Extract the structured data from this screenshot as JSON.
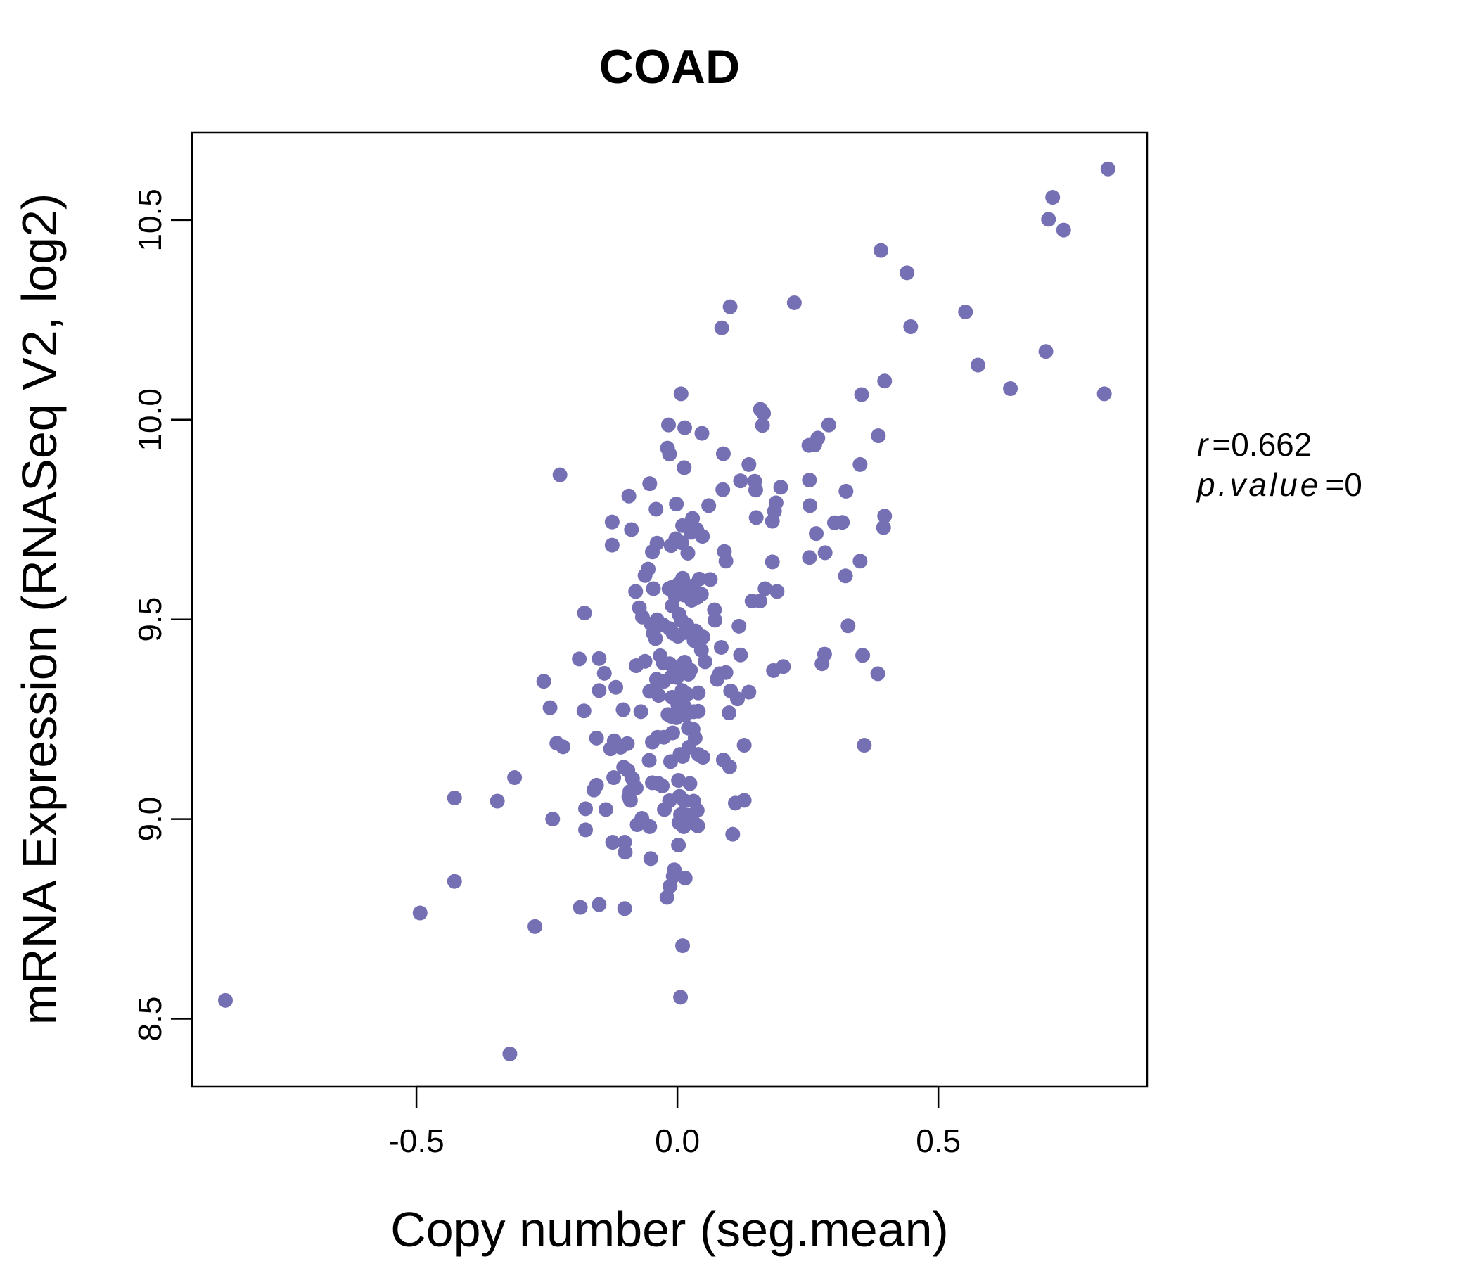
{
  "chart_data": {
    "type": "scatter",
    "title": "COAD",
    "xlabel": "Copy number (seg.mean)",
    "ylabel": "mRNA Expression (RNASeq V2, log2)",
    "xlim": [
      -0.93,
      0.9
    ],
    "ylim": [
      8.33,
      10.72
    ],
    "x_ticks": [
      {
        "value": -0.5,
        "label": "-0.5"
      },
      {
        "value": 0.0,
        "label": "0.0"
      },
      {
        "value": 0.5,
        "label": "0.5"
      }
    ],
    "y_ticks": [
      {
        "value": 8.5,
        "label": "8.5"
      },
      {
        "value": 9.0,
        "label": "9.0"
      },
      {
        "value": 9.5,
        "label": "9.5"
      },
      {
        "value": 10.0,
        "label": "10.0"
      },
      {
        "value": 10.5,
        "label": "10.5"
      }
    ],
    "grid": false,
    "legend": "none",
    "point_color": "#7570B3",
    "title_color": "#7570B3",
    "annotations": {
      "r_symbol": "r",
      "r_value": "0.662",
      "p_symbol": "p.value",
      "p_value": "0"
    },
    "series": [
      {
        "points": [
          [
            -0.866,
            8.546
          ],
          [
            -0.321,
            8.412
          ],
          [
            -0.493,
            8.765
          ],
          [
            -0.427,
            8.844
          ],
          [
            -0.273,
            8.731
          ],
          [
            -0.427,
            9.053
          ],
          [
            -0.345,
            9.045
          ],
          [
            -0.312,
            9.104
          ],
          [
            -0.239,
            9.0
          ],
          [
            -0.225,
            9.862
          ],
          [
            -0.256,
            9.345
          ],
          [
            -0.244,
            9.279
          ],
          [
            -0.231,
            9.19
          ],
          [
            -0.219,
            9.181
          ],
          [
            -0.188,
            9.401
          ],
          [
            -0.178,
            9.516
          ],
          [
            -0.179,
            9.271
          ],
          [
            -0.176,
            9.026
          ],
          [
            -0.176,
            8.973
          ],
          [
            -0.186,
            8.779
          ],
          [
            -0.15,
            8.786
          ],
          [
            -0.101,
            8.776
          ],
          [
            -0.15,
            9.402
          ],
          [
            -0.15,
            9.322
          ],
          [
            -0.155,
            9.203
          ],
          [
            -0.155,
            9.085
          ],
          [
            -0.16,
            9.073
          ],
          [
            -0.14,
            9.365
          ],
          [
            -0.125,
            9.744
          ],
          [
            -0.125,
            9.686
          ],
          [
            -0.118,
            9.33
          ],
          [
            -0.121,
            9.196
          ],
          [
            -0.128,
            9.176
          ],
          [
            -0.122,
            9.104
          ],
          [
            -0.124,
            8.942
          ],
          [
            -0.137,
            9.024
          ],
          [
            -0.093,
            9.809
          ],
          [
            -0.088,
            9.725
          ],
          [
            -0.08,
            9.57
          ],
          [
            -0.073,
            9.529
          ],
          [
            -0.062,
            9.61
          ],
          [
            -0.104,
            9.274
          ],
          [
            -0.109,
            9.18
          ],
          [
            -0.096,
            9.189
          ],
          [
            -0.103,
            9.13
          ],
          [
            -0.095,
            9.122
          ],
          [
            -0.086,
            9.101
          ],
          [
            -0.091,
            9.069
          ],
          [
            -0.079,
            9.078
          ],
          [
            -0.093,
            9.056
          ],
          [
            -0.09,
            9.047
          ],
          [
            -0.101,
            8.942
          ],
          [
            -0.1,
            8.917
          ],
          [
            -0.079,
            9.384
          ],
          [
            -0.077,
            8.986
          ],
          [
            -0.067,
            9.506
          ],
          [
            -0.062,
            9.395
          ],
          [
            -0.07,
            9.269
          ],
          [
            -0.068,
            9.002
          ],
          [
            -0.053,
            9.84
          ],
          [
            -0.056,
            9.626
          ],
          [
            -0.048,
            9.669
          ],
          [
            -0.046,
            9.577
          ],
          [
            -0.05,
            9.488
          ],
          [
            -0.046,
            9.465
          ],
          [
            -0.042,
            9.452
          ],
          [
            -0.053,
            9.32
          ],
          [
            -0.044,
            9.325
          ],
          [
            -0.036,
            9.31
          ],
          [
            -0.048,
            9.193
          ],
          [
            -0.054,
            9.147
          ],
          [
            -0.048,
            9.091
          ],
          [
            -0.053,
            8.981
          ],
          [
            -0.051,
            8.901
          ],
          [
            -0.041,
            9.776
          ],
          [
            -0.039,
            9.691
          ],
          [
            -0.039,
            9.499
          ],
          [
            -0.028,
            9.487
          ],
          [
            -0.033,
            9.409
          ],
          [
            -0.027,
            9.391
          ],
          [
            -0.04,
            9.35
          ],
          [
            -0.026,
            9.345
          ],
          [
            -0.038,
            9.205
          ],
          [
            -0.026,
            9.205
          ],
          [
            -0.036,
            9.089
          ],
          [
            -0.029,
            9.083
          ],
          [
            -0.025,
            9.024
          ],
          [
            -0.017,
            9.987
          ],
          [
            -0.019,
            9.929
          ],
          [
            -0.015,
            9.914
          ],
          [
            -0.012,
            9.685
          ],
          [
            -0.016,
            9.577
          ],
          [
            -0.011,
            9.58
          ],
          [
            -0.01,
            9.534
          ],
          [
            -0.015,
            9.477
          ],
          [
            -0.008,
            9.465
          ],
          [
            -0.015,
            9.389
          ],
          [
            -0.011,
            9.357
          ],
          [
            -0.01,
            9.305
          ],
          [
            -0.011,
            9.257
          ],
          [
            -0.018,
            9.262
          ],
          [
            -0.009,
            9.216
          ],
          [
            -0.013,
            9.144
          ],
          [
            -0.015,
            9.046
          ],
          [
            -0.02,
            8.804
          ],
          [
            -0.014,
            8.832
          ],
          [
            -0.008,
            8.857
          ],
          [
            -0.006,
            8.873
          ],
          [
            -0.002,
            9.789
          ],
          [
            -0.003,
            9.702
          ],
          [
            0.002,
            9.588
          ],
          [
            -0.004,
            9.559
          ],
          [
            0.003,
            9.513
          ],
          [
            0.001,
            9.458
          ],
          [
            0.005,
            9.377
          ],
          [
            -0.001,
            9.355
          ],
          [
            0.004,
            9.302
          ],
          [
            0.001,
            9.286
          ],
          [
            -0.002,
            9.254
          ],
          [
            0.005,
            9.162
          ],
          [
            0.002,
            9.097
          ],
          [
            0.004,
            9.057
          ],
          [
            0.006,
            9.011
          ],
          [
            0.003,
            8.991
          ],
          [
            0.002,
            8.935
          ],
          [
            0.006,
            8.554
          ],
          [
            0.007,
            10.065
          ],
          [
            0.01,
            9.735
          ],
          [
            0.008,
            9.692
          ],
          [
            0.01,
            9.603
          ],
          [
            0.013,
            9.561
          ],
          [
            0.008,
            9.497
          ],
          [
            0.014,
            9.467
          ],
          [
            0.01,
            9.387
          ],
          [
            0.014,
            9.393
          ],
          [
            0.009,
            9.322
          ],
          [
            0.012,
            9.285
          ],
          [
            0.015,
            9.26
          ],
          [
            0.01,
            9.157
          ],
          [
            0.013,
            9.046
          ],
          [
            0.008,
            9.012
          ],
          [
            0.012,
            8.981
          ],
          [
            0.015,
            8.852
          ],
          [
            0.01,
            8.683
          ],
          [
            0.014,
            9.98
          ],
          [
            0.013,
            9.88
          ],
          [
            0.02,
            9.666
          ],
          [
            0.02,
            9.567
          ],
          [
            0.018,
            9.487
          ],
          [
            0.021,
            9.363
          ],
          [
            0.019,
            9.313
          ],
          [
            0.021,
            9.228
          ],
          [
            0.022,
            9.18
          ],
          [
            0.024,
            9.089
          ],
          [
            0.019,
            9.01
          ],
          [
            0.025,
            8.992
          ],
          [
            0.029,
            9.753
          ],
          [
            0.026,
            9.718
          ],
          [
            0.03,
            9.584
          ],
          [
            0.027,
            9.548
          ],
          [
            0.032,
            9.447
          ],
          [
            0.025,
            9.373
          ],
          [
            0.031,
            9.269
          ],
          [
            0.03,
            9.225
          ],
          [
            0.031,
            9.045
          ],
          [
            0.032,
            8.99
          ],
          [
            0.037,
            9.725
          ],
          [
            0.042,
            9.601
          ],
          [
            0.038,
            9.555
          ],
          [
            0.035,
            9.471
          ],
          [
            0.04,
            9.316
          ],
          [
            0.04,
            9.27
          ],
          [
            0.034,
            9.203
          ],
          [
            0.04,
            9.162
          ],
          [
            0.038,
            9.022
          ],
          [
            0.039,
            8.983
          ],
          [
            0.047,
            9.966
          ],
          [
            0.048,
            9.708
          ],
          [
            0.046,
            9.563
          ],
          [
            0.049,
            9.456
          ],
          [
            0.046,
            9.423
          ],
          [
            0.053,
            9.394
          ],
          [
            0.049,
            9.155
          ],
          [
            0.06,
            9.785
          ],
          [
            0.063,
            9.6
          ],
          [
            0.071,
            9.524
          ],
          [
            0.072,
            9.498
          ],
          [
            0.076,
            9.35
          ],
          [
            0.081,
            9.364
          ],
          [
            0.085,
            10.23
          ],
          [
            0.088,
            9.915
          ],
          [
            0.087,
            9.825
          ],
          [
            0.09,
            9.67
          ],
          [
            0.093,
            9.646
          ],
          [
            0.084,
            9.43
          ],
          [
            0.088,
            9.148
          ],
          [
            0.093,
            9.367
          ],
          [
            0.099,
            9.266
          ],
          [
            0.101,
            10.283
          ],
          [
            0.102,
            9.321
          ],
          [
            0.1,
            9.131
          ],
          [
            0.106,
            8.962
          ],
          [
            0.111,
            9.04
          ],
          [
            0.115,
            9.301
          ],
          [
            0.118,
            9.483
          ],
          [
            0.121,
            9.411
          ],
          [
            0.121,
            9.847
          ],
          [
            0.128,
            9.185
          ],
          [
            0.128,
            9.047
          ],
          [
            0.137,
            9.318
          ],
          [
            0.137,
            9.888
          ],
          [
            0.143,
            9.546
          ],
          [
            0.148,
            9.846
          ],
          [
            0.15,
            9.824
          ],
          [
            0.151,
            9.755
          ],
          [
            0.159,
            10.026
          ],
          [
            0.165,
            10.016
          ],
          [
            0.163,
            9.986
          ],
          [
            0.158,
            9.546
          ],
          [
            0.168,
            9.577
          ],
          [
            0.182,
            9.746
          ],
          [
            0.182,
            9.644
          ],
          [
            0.186,
            9.771
          ],
          [
            0.189,
            9.792
          ],
          [
            0.184,
            9.372
          ],
          [
            0.191,
            9.57
          ],
          [
            0.198,
            9.831
          ],
          [
            0.203,
            9.382
          ],
          [
            0.224,
            10.293
          ],
          [
            0.252,
            9.936
          ],
          [
            0.253,
            9.849
          ],
          [
            0.254,
            9.785
          ],
          [
            0.253,
            9.655
          ],
          [
            0.263,
            9.937
          ],
          [
            0.269,
            9.954
          ],
          [
            0.266,
            9.715
          ],
          [
            0.277,
            9.389
          ],
          [
            0.282,
            9.413
          ],
          [
            0.283,
            9.667
          ],
          [
            0.29,
            9.987
          ],
          [
            0.301,
            9.742
          ],
          [
            0.316,
            9.743
          ],
          [
            0.322,
            9.609
          ],
          [
            0.323,
            9.821
          ],
          [
            0.327,
            9.484
          ],
          [
            0.35,
            9.646
          ],
          [
            0.35,
            9.888
          ],
          [
            0.353,
            10.063
          ],
          [
            0.355,
            9.41
          ],
          [
            0.358,
            9.185
          ],
          [
            0.384,
            9.364
          ],
          [
            0.385,
            9.96
          ],
          [
            0.39,
            10.424
          ],
          [
            0.395,
            9.73
          ],
          [
            0.397,
            9.759
          ],
          [
            0.397,
            10.097
          ],
          [
            0.44,
            10.368
          ],
          [
            0.447,
            10.233
          ],
          [
            0.552,
            10.27
          ],
          [
            0.576,
            10.137
          ],
          [
            0.638,
            10.078
          ],
          [
            0.706,
            10.171
          ],
          [
            0.711,
            10.502
          ],
          [
            0.719,
            10.557
          ],
          [
            0.74,
            10.475
          ],
          [
            0.818,
            10.065
          ],
          [
            0.825,
            10.628
          ]
        ]
      }
    ]
  }
}
